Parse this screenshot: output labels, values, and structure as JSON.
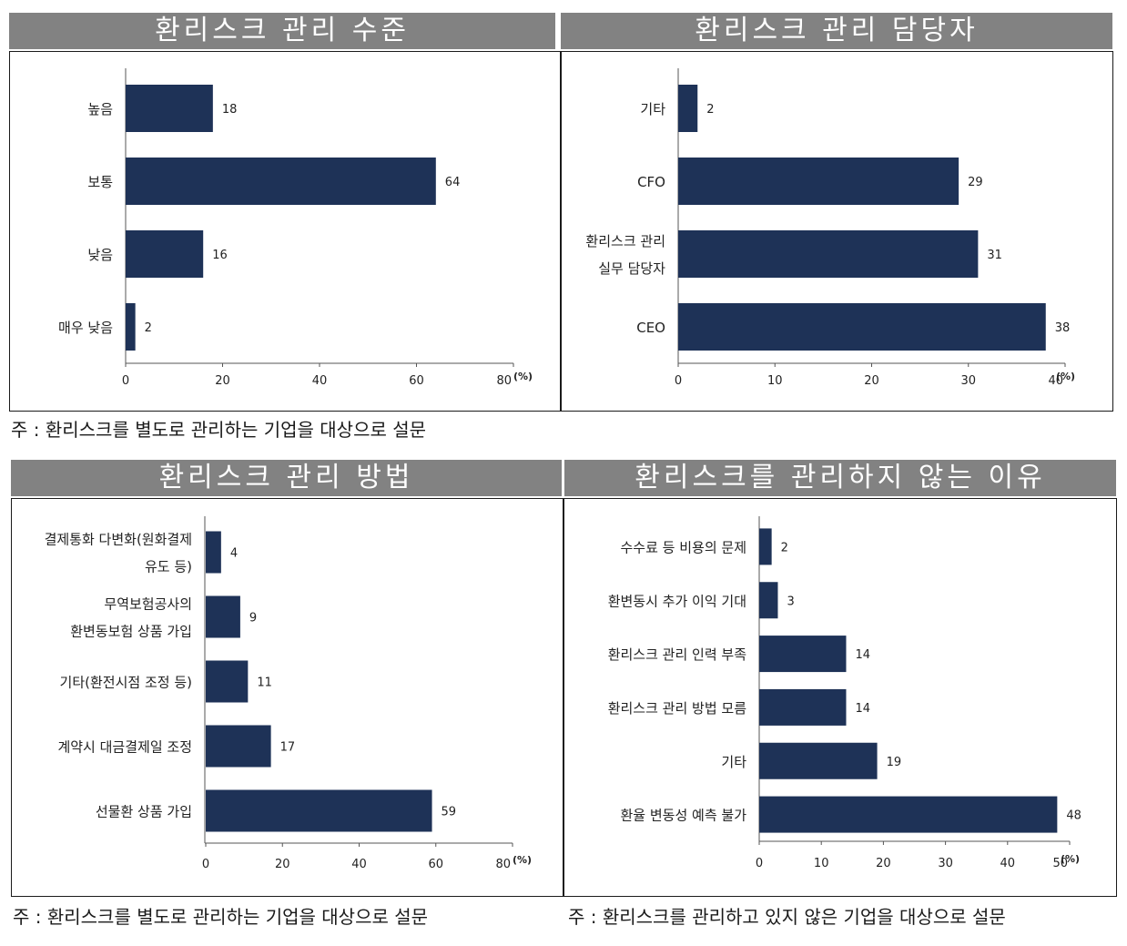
{
  "colors": {
    "bar": "#1e3257",
    "title_bg": "#828282",
    "axis": "#555555"
  },
  "panels": [
    {
      "title": "환리스크 관리 수준"
    },
    {
      "title": "환리스크 관리 담당자"
    },
    {
      "title": "환리스크 관리 방법"
    },
    {
      "title": "환리스크를 관리하지 않는 이유"
    }
  ],
  "notes": {
    "top": "주 : 환리스크를 별도로 관리하는 기업을 대상으로 설문",
    "bottom_left": "주 : 환리스크를 별도로 관리하는 기업을 대상으로 설문",
    "bottom_right": "주 : 환리스크를 관리하고 있지 않은 기업을 대상으로 설문"
  },
  "chart_data": [
    {
      "type": "bar",
      "orientation": "horizontal",
      "title": "환리스크 관리 수준",
      "categories": [
        "높음",
        "보통",
        "낮음",
        "매우 낮음"
      ],
      "values": [
        18,
        64,
        16,
        2
      ],
      "xlim": [
        0,
        80
      ],
      "ticks": [
        0,
        20,
        40,
        60,
        80
      ],
      "unit": "(%)"
    },
    {
      "type": "bar",
      "orientation": "horizontal",
      "title": "환리스크 관리 담당자",
      "categories": [
        "기타",
        "CFO",
        "환리스크 관리\n실무 담당자",
        "CEO"
      ],
      "values": [
        2,
        29,
        31,
        38
      ],
      "xlim": [
        0,
        40
      ],
      "ticks": [
        0,
        10,
        20,
        30,
        40
      ],
      "unit": "(%)"
    },
    {
      "type": "bar",
      "orientation": "horizontal",
      "title": "환리스크 관리 방법",
      "categories": [
        "결제통화 다변화(원화결제\n유도 등)",
        "무역보험공사의\n환변동보험 상품 가입",
        "기타(환전시점 조정 등)",
        "계약시 대금결제일 조정",
        "선물환 상품 가입"
      ],
      "values": [
        4,
        9,
        11,
        17,
        59
      ],
      "xlim": [
        0,
        80
      ],
      "ticks": [
        0,
        20,
        40,
        60,
        80
      ],
      "unit": "(%)"
    },
    {
      "type": "bar",
      "orientation": "horizontal",
      "title": "환리스크를 관리하지 않는 이유",
      "categories": [
        "수수료 등 비용의 문제",
        "환변동시 추가 이익 기대",
        "환리스크 관리 인력 부족",
        "환리스크 관리 방법 모름",
        "기타",
        "환율 변동성 예측 불가"
      ],
      "values": [
        2,
        3,
        14,
        14,
        19,
        48
      ],
      "xlim": [
        0,
        50
      ],
      "ticks": [
        0,
        10,
        20,
        30,
        40,
        50
      ],
      "unit": "(%)"
    }
  ]
}
